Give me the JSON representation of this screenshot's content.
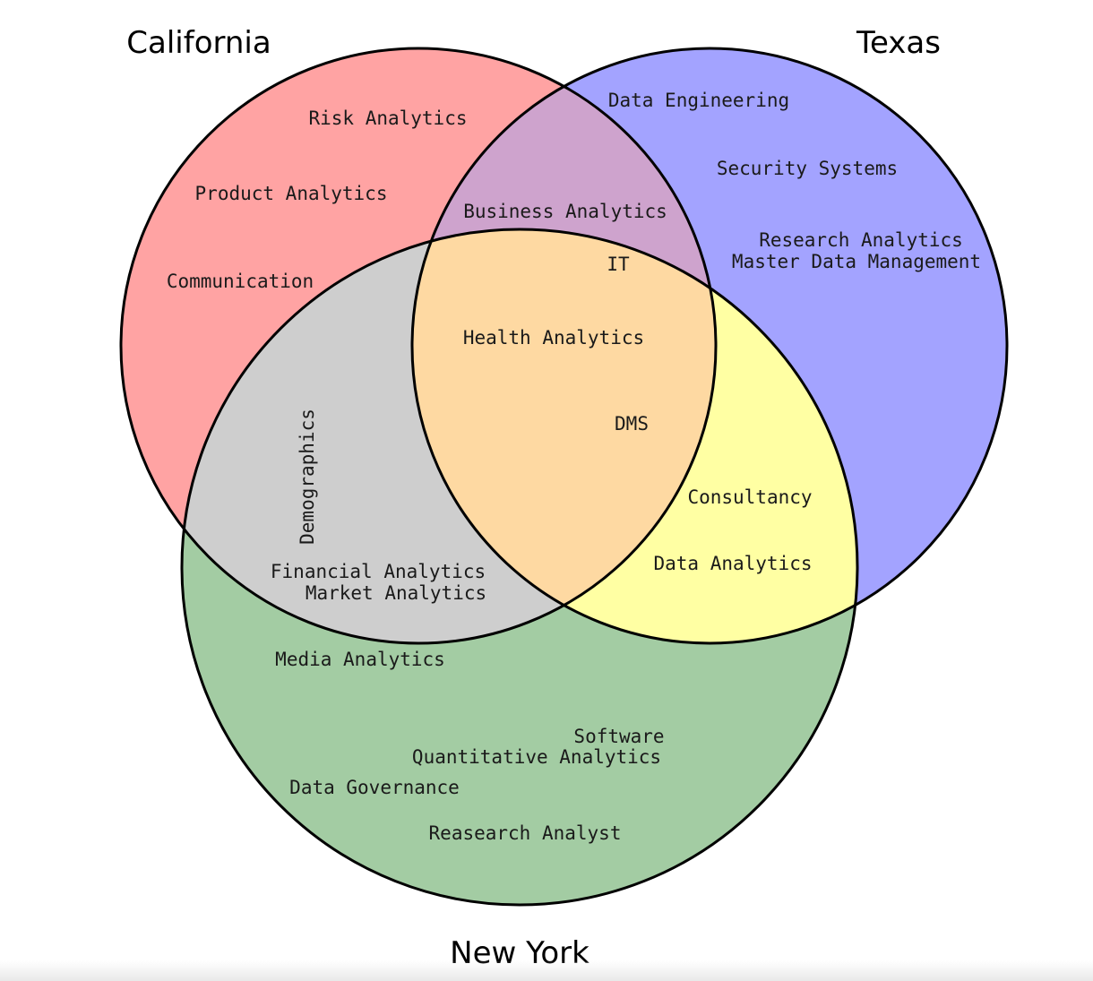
{
  "sets": {
    "california": {
      "title": "California",
      "color": "#ffa3a3"
    },
    "texas": {
      "title": "Texas",
      "color": "#a3a3ff"
    },
    "new_york": {
      "title": "New York",
      "color": "#a3cca3"
    }
  },
  "overlap_colors": {
    "california_texas": "#cea3cd",
    "california_new_york": "#cecece",
    "texas_new_york": "#ffffa3",
    "all_three": "#fed9a2"
  },
  "regions": {
    "california_only": [
      "Risk Analytics",
      "Product Analytics",
      "Communication"
    ],
    "texas_only": [
      "Data Engineering",
      "Security Systems",
      "Research Analytics",
      "Master Data Management"
    ],
    "new_york_only": [
      "Media Analytics",
      "Software",
      "Quantitative Analytics",
      "Data Governance",
      "Reasearch Analyst"
    ],
    "california_texas": [
      "Business Analytics",
      "IT"
    ],
    "california_new_york": [
      "Demographics",
      "Financial Analytics",
      "Market Analytics"
    ],
    "texas_new_york": [
      "Consultancy",
      "Data Analytics"
    ],
    "all_three": [
      "Health Analytics",
      "DMS"
    ]
  }
}
